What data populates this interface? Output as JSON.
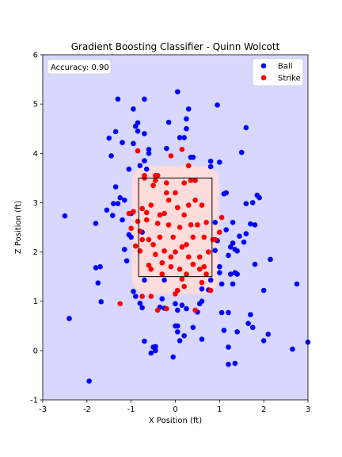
{
  "chart_data": {
    "type": "scatter",
    "title": "Gradient Boosting Classifier - Quinn Wolcott",
    "xlabel": "X Position (ft)",
    "ylabel": "Z Position (ft)",
    "xlim": [
      -3,
      3
    ],
    "ylim": [
      -1,
      6
    ],
    "xticks": [
      -3,
      -2,
      -1,
      0,
      1,
      2,
      3
    ],
    "yticks": [
      -1,
      0,
      1,
      2,
      3,
      4,
      5,
      6
    ],
    "grid": false,
    "legend_position": "top-right",
    "annotation": "Accuracy: 0.90",
    "background_color": "#d8d8ff",
    "strike_region_color": "#ffdcdc",
    "strike_zone": {
      "x": [
        -0.83,
        0.83
      ],
      "z": [
        1.5,
        3.5
      ]
    },
    "series": [
      {
        "name": "Ball",
        "color": "#0000ff",
        "points": [
          [
            -2.5,
            2.73
          ],
          [
            -2.4,
            0.65
          ],
          [
            -1.95,
            -0.62
          ],
          [
            -1.8,
            2.58
          ],
          [
            -1.8,
            1.68
          ],
          [
            -1.75,
            1.37
          ],
          [
            -1.7,
            1.7
          ],
          [
            -1.68,
            0.99
          ],
          [
            -1.5,
            4.31
          ],
          [
            -1.55,
            2.85
          ],
          [
            -1.45,
            3.95
          ],
          [
            -1.4,
            2.98
          ],
          [
            -1.42,
            2.74
          ],
          [
            -1.35,
            3.32
          ],
          [
            -1.3,
            2.98
          ],
          [
            -1.3,
            5.1
          ],
          [
            -1.35,
            4.44
          ],
          [
            -1.25,
            3.1
          ],
          [
            -1.2,
            2.65
          ],
          [
            -1.2,
            4.22
          ],
          [
            -1.15,
            3.05
          ],
          [
            -1.15,
            2.05
          ],
          [
            -1.1,
            1.82
          ],
          [
            -1.05,
            2.35
          ],
          [
            -1.05,
            3.68
          ],
          [
            -1.0,
            2.3
          ],
          [
            -1.0,
            2.78
          ],
          [
            -0.95,
            4.9
          ],
          [
            -0.9,
            4.55
          ],
          [
            -0.85,
            4.62
          ],
          [
            -0.85,
            4.45
          ],
          [
            -0.95,
            4.2
          ],
          [
            -0.95,
            1.2
          ],
          [
            -0.9,
            1.1
          ],
          [
            -0.8,
            3.75
          ],
          [
            -0.7,
            5.1
          ],
          [
            -0.7,
            4.4
          ],
          [
            -0.7,
            3.85
          ],
          [
            -0.75,
            2.4
          ],
          [
            -0.7,
            1.43
          ],
          [
            -0.75,
            0.87
          ],
          [
            -0.8,
            0.96
          ],
          [
            -0.7,
            0.19
          ],
          [
            -0.65,
            3.68
          ],
          [
            -0.6,
            4.0
          ],
          [
            -0.6,
            4.08
          ],
          [
            -0.55,
            -0.05
          ],
          [
            -0.5,
            0.07
          ],
          [
            -0.45,
            0.0
          ],
          [
            -0.45,
            0.08
          ],
          [
            -0.35,
            0.88
          ],
          [
            -0.3,
            1.05
          ],
          [
            -0.25,
            1.43
          ],
          [
            -0.2,
            4.1
          ],
          [
            -0.15,
            4.63
          ],
          [
            -0.05,
            -0.13
          ],
          [
            0.0,
            0.5
          ],
          [
            0.0,
            0.95
          ],
          [
            0.05,
            0.82
          ],
          [
            0.05,
            5.25
          ],
          [
            0.05,
            0.5
          ],
          [
            0.1,
            0.2
          ],
          [
            0.1,
            4.32
          ],
          [
            0.2,
            4.32
          ],
          [
            0.25,
            4.5
          ],
          [
            0.25,
            4.7
          ],
          [
            0.35,
            3.92
          ],
          [
            0.3,
            4.9
          ],
          [
            0.4,
            3.92
          ],
          [
            0.2,
            0.3
          ],
          [
            0.25,
            0.85
          ],
          [
            0.4,
            0.47
          ],
          [
            0.5,
            0.78
          ],
          [
            0.55,
            0.95
          ],
          [
            0.6,
            0.23
          ],
          [
            0.6,
            1.0
          ],
          [
            0.6,
            1.25
          ],
          [
            0.75,
            1.23
          ],
          [
            0.8,
            1.43
          ],
          [
            0.8,
            3.73
          ],
          [
            0.8,
            3.84
          ],
          [
            0.9,
            2.03
          ],
          [
            0.9,
            2.6
          ],
          [
            0.95,
            2.23
          ],
          [
            0.95,
            4.98
          ],
          [
            1.0,
            3.82
          ],
          [
            1.0,
            1.7
          ],
          [
            1.0,
            1.58
          ],
          [
            1.05,
            1.35
          ],
          [
            1.05,
            0.77
          ],
          [
            1.1,
            0.41
          ],
          [
            1.1,
            3.18
          ],
          [
            1.15,
            3.2
          ],
          [
            1.15,
            2.45
          ],
          [
            1.2,
            1.93
          ],
          [
            1.2,
            0.07
          ],
          [
            1.2,
            0.77
          ],
          [
            1.2,
            -0.28
          ],
          [
            1.25,
            1.55
          ],
          [
            1.25,
            2.1
          ],
          [
            1.3,
            2.6
          ],
          [
            1.3,
            1.35
          ],
          [
            1.3,
            2.18
          ],
          [
            1.35,
            2.05
          ],
          [
            1.35,
            1.58
          ],
          [
            1.4,
            1.55
          ],
          [
            1.4,
            2.02
          ],
          [
            1.35,
            -0.26
          ],
          [
            1.4,
            0.38
          ],
          [
            1.45,
            2.32
          ],
          [
            1.5,
            4.02
          ],
          [
            1.55,
            2.2
          ],
          [
            1.6,
            2.98
          ],
          [
            1.6,
            2.37
          ],
          [
            1.6,
            4.52
          ],
          [
            1.65,
            0.55
          ],
          [
            1.7,
            0.73
          ],
          [
            1.7,
            2.57
          ],
          [
            1.75,
            3.0
          ],
          [
            1.75,
            0.47
          ],
          [
            1.8,
            1.75
          ],
          [
            1.8,
            2.55
          ],
          [
            1.85,
            3.15
          ],
          [
            1.9,
            3.1
          ],
          [
            2.0,
            1.22
          ],
          [
            2.0,
            0.2
          ],
          [
            2.1,
            0.33
          ],
          [
            2.15,
            1.85
          ],
          [
            2.65,
            0.03
          ],
          [
            2.75,
            1.35
          ],
          [
            3.0,
            0.17
          ],
          [
            -0.25,
            0.86
          ],
          [
            0.05,
            0.38
          ],
          [
            0.15,
            0.92
          ]
        ]
      },
      {
        "name": "Strike",
        "color": "#ff0000",
        "points": [
          [
            -1.25,
            0.95
          ],
          [
            -1.05,
            2.78
          ],
          [
            -1.0,
            2.48
          ],
          [
            -0.95,
            2.82
          ],
          [
            -0.9,
            2.12
          ],
          [
            -0.85,
            4.05
          ],
          [
            -0.85,
            2.62
          ],
          [
            -0.8,
            2.42
          ],
          [
            -0.75,
            2.88
          ],
          [
            -0.75,
            1.1
          ],
          [
            -0.75,
            2.25
          ],
          [
            -0.7,
            3.55
          ],
          [
            -0.7,
            3.5
          ],
          [
            -0.65,
            2.8
          ],
          [
            -0.65,
            2.65
          ],
          [
            -0.6,
            2.25
          ],
          [
            -0.6,
            1.73
          ],
          [
            -0.55,
            1.65
          ],
          [
            -0.55,
            2.95
          ],
          [
            -0.5,
            3.35
          ],
          [
            -0.5,
            2.15
          ],
          [
            -0.45,
            1.95
          ],
          [
            -0.45,
            3.45
          ],
          [
            -0.4,
            3.55
          ],
          [
            -0.4,
            2.58
          ],
          [
            -0.35,
            2.75
          ],
          [
            -0.35,
            2.3
          ],
          [
            -0.3,
            1.78
          ],
          [
            -0.3,
            1.55
          ],
          [
            -0.25,
            2.02
          ],
          [
            -0.25,
            2.78
          ],
          [
            -0.2,
            3.2
          ],
          [
            -0.2,
            3.4
          ],
          [
            -0.15,
            2.55
          ],
          [
            -0.15,
            3.05
          ],
          [
            -0.1,
            1.9
          ],
          [
            -0.1,
            1.7
          ],
          [
            -0.05,
            2.3
          ],
          [
            0.0,
            3.2
          ],
          [
            0.0,
            2.0
          ],
          [
            0.05,
            2.9
          ],
          [
            0.1,
            2.5
          ],
          [
            0.1,
            1.65
          ],
          [
            0.15,
            2.1
          ],
          [
            0.15,
            1.45
          ],
          [
            0.2,
            3.4
          ],
          [
            0.2,
            2.75
          ],
          [
            0.25,
            2.15
          ],
          [
            0.25,
            1.55
          ],
          [
            0.3,
            2.95
          ],
          [
            0.3,
            1.9
          ],
          [
            0.35,
            3.45
          ],
          [
            0.35,
            2.55
          ],
          [
            0.4,
            1.75
          ],
          [
            0.4,
            2.3
          ],
          [
            0.45,
            3.05
          ],
          [
            0.5,
            2.55
          ],
          [
            0.55,
            1.9
          ],
          [
            0.55,
            1.65
          ],
          [
            0.6,
            2.95
          ],
          [
            0.65,
            2.3
          ],
          [
            0.65,
            1.7
          ],
          [
            0.7,
            2.6
          ],
          [
            0.75,
            2.0
          ],
          [
            0.85,
            2.25
          ],
          [
            0.9,
            2.25
          ],
          [
            1.0,
            2.4
          ],
          [
            1.05,
            2.7
          ],
          [
            -0.2,
            0.85
          ],
          [
            -0.4,
            0.82
          ],
          [
            0.15,
            4.08
          ],
          [
            0.05,
            1.22
          ],
          [
            0.45,
            0.82
          ],
          [
            0.8,
            1.22
          ],
          [
            -0.1,
            3.95
          ],
          [
            0.3,
            3.75
          ],
          [
            -0.55,
            1.1
          ],
          [
            0.0,
            1.15
          ],
          [
            0.6,
            1.38
          ],
          [
            -0.8,
            2.02
          ],
          [
            0.2,
            1.3
          ],
          [
            0.7,
            1.55
          ],
          [
            -0.45,
            3.55
          ],
          [
            0.45,
            3.45
          ]
        ]
      }
    ]
  }
}
